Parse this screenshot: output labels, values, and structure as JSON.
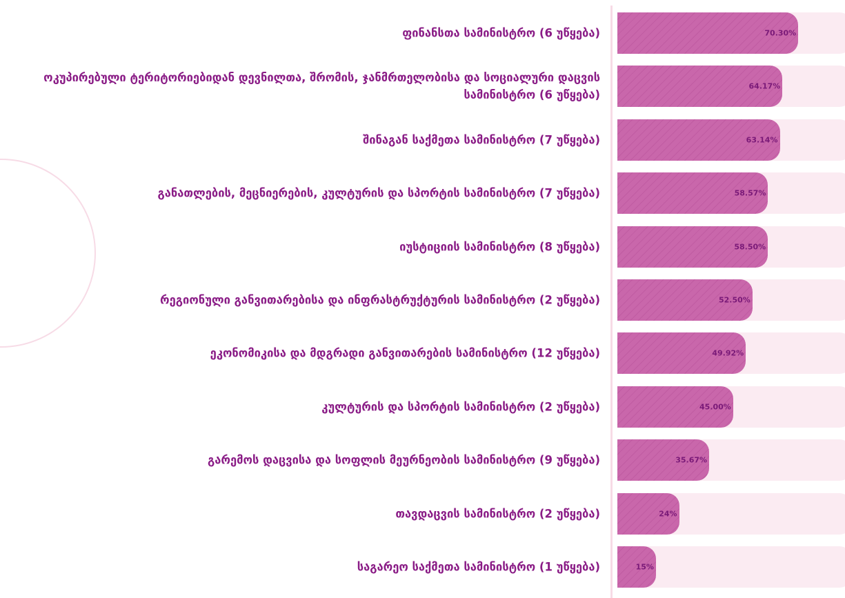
{
  "chart_data": {
    "type": "bar",
    "orientation": "horizontal",
    "categories": [
      "ფინანსთა სამინისტრო (6 უწყება)",
      "ოკუპირებული ტერიტორიებიდან დევნილთა, შრომის, ჯანმრთელობისა და სოციალური დაცვის სამინისტრო (6 უწყება)",
      "შინაგან საქმეთა სამინისტრო (7 უწყება)",
      "განათლების, მეცნიერების, კულტურის და სპორტის სამინისტრო (7 უწყება)",
      "იუსტიციის სამინისტრო (8 უწყება)",
      "რეგიონული განვითარებისა და ინფრასტრუქტურის სამინისტრო (2 უწყება)",
      "ეკონომიკისა და მდგრადი განვითარების სამინისტრო (12 უწყება)",
      "კულტურის და სპორტის სამინისტრო (2 უწყება)",
      "გარემოს დაცვისა და სოფლის მეურნეობის სამინისტრო (9 უწყება)",
      "თავდაცვის სამინისტრო (2 უწყება)",
      "საგარეო საქმეთა სამინისტრო (1 უწყება)"
    ],
    "values": [
      70.3,
      64.17,
      63.14,
      58.57,
      58.5,
      52.5,
      49.92,
      45,
      35.67,
      24,
      15
    ],
    "value_labels": [
      "70.30%",
      "64.17%",
      "63.14%",
      "58.57%",
      "58.50%",
      "52.50%",
      "49.92%",
      "45.00%",
      "35.67%",
      "24%",
      "15%"
    ],
    "color": "#c967ab",
    "xlim": [
      0,
      100
    ]
  }
}
